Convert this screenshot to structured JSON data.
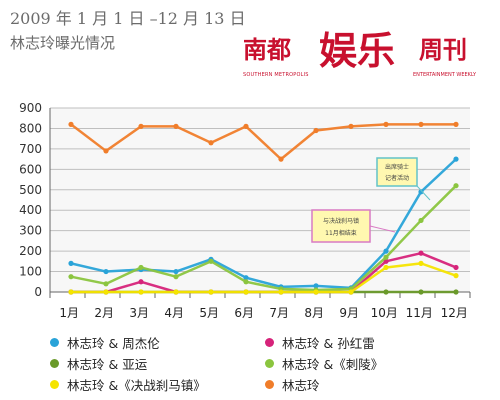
{
  "header": {
    "title_line1": "2009 年 1 月 1 日 –12 月 13 日",
    "title_line2": "林志玲曝光情况"
  },
  "logo": {
    "part_a": "南都",
    "part_b": "娱乐",
    "part_c": "周刊",
    "en_left": "SOUTHERN METROPOLIS",
    "en_right": "ENTERTAINMENT WEEKLY"
  },
  "chart_data": {
    "type": "line",
    "categories": [
      "1月",
      "2月",
      "3月",
      "4月",
      "5月",
      "6月",
      "7月",
      "8月",
      "9月",
      "10月",
      "11月",
      "12月"
    ],
    "ylim": [
      0,
      900
    ],
    "yticks": [
      0,
      100,
      200,
      300,
      400,
      500,
      600,
      700,
      800,
      900
    ],
    "series": [
      {
        "name": "林志玲 & 周杰伦",
        "color": "#29a3d8",
        "values": [
          140,
          100,
          110,
          100,
          160,
          70,
          25,
          30,
          20,
          200,
          490,
          650
        ]
      },
      {
        "name": "林志玲 & 孙红雷",
        "color": "#d6237a",
        "values": [
          0,
          0,
          50,
          0,
          0,
          0,
          0,
          0,
          0,
          150,
          190,
          120
        ]
      },
      {
        "name": "林志玲 & 亚运",
        "color": "#6a9a2a",
        "values": [
          0,
          0,
          0,
          0,
          0,
          0,
          0,
          0,
          0,
          0,
          0,
          0
        ]
      },
      {
        "name": "林志玲 &《刺陵》",
        "color": "#8bc53f",
        "values": [
          75,
          40,
          120,
          75,
          150,
          50,
          15,
          10,
          15,
          170,
          350,
          520
        ]
      },
      {
        "name": "林志玲 &《决战刹马镇》",
        "color": "#f5e400",
        "values": [
          0,
          0,
          0,
          0,
          0,
          0,
          0,
          0,
          0,
          120,
          140,
          80
        ]
      },
      {
        "name": "林志玲",
        "color": "#f07d2a",
        "values": [
          820,
          690,
          810,
          810,
          730,
          810,
          650,
          790,
          810,
          820,
          820,
          820
        ]
      }
    ],
    "xpositions_month": [
      0.6,
      1.6,
      2.6,
      3.6,
      4.6,
      5.6,
      6.6,
      7.6,
      8.6,
      9.6,
      10.6,
      11.6
    ],
    "callouts": [
      {
        "line1": "出席骑士",
        "line2": "记者活动"
      },
      {
        "line1": "与决战刹马镇",
        "line2": "11月相结束"
      }
    ]
  },
  "legend": [
    {
      "label": "林志玲 & 周杰伦",
      "color": "#29a3d8"
    },
    {
      "label": "林志玲 & 孙红雷",
      "color": "#d6237a"
    },
    {
      "label": "林志玲 & 亚运",
      "color": "#6a9a2a"
    },
    {
      "label": "林志玲 &《刺陵》",
      "color": "#8bc53f"
    },
    {
      "label": "林志玲 &《决战刹马镇》",
      "color": "#f5e400"
    },
    {
      "label": "林志玲",
      "color": "#f07d2a"
    }
  ]
}
